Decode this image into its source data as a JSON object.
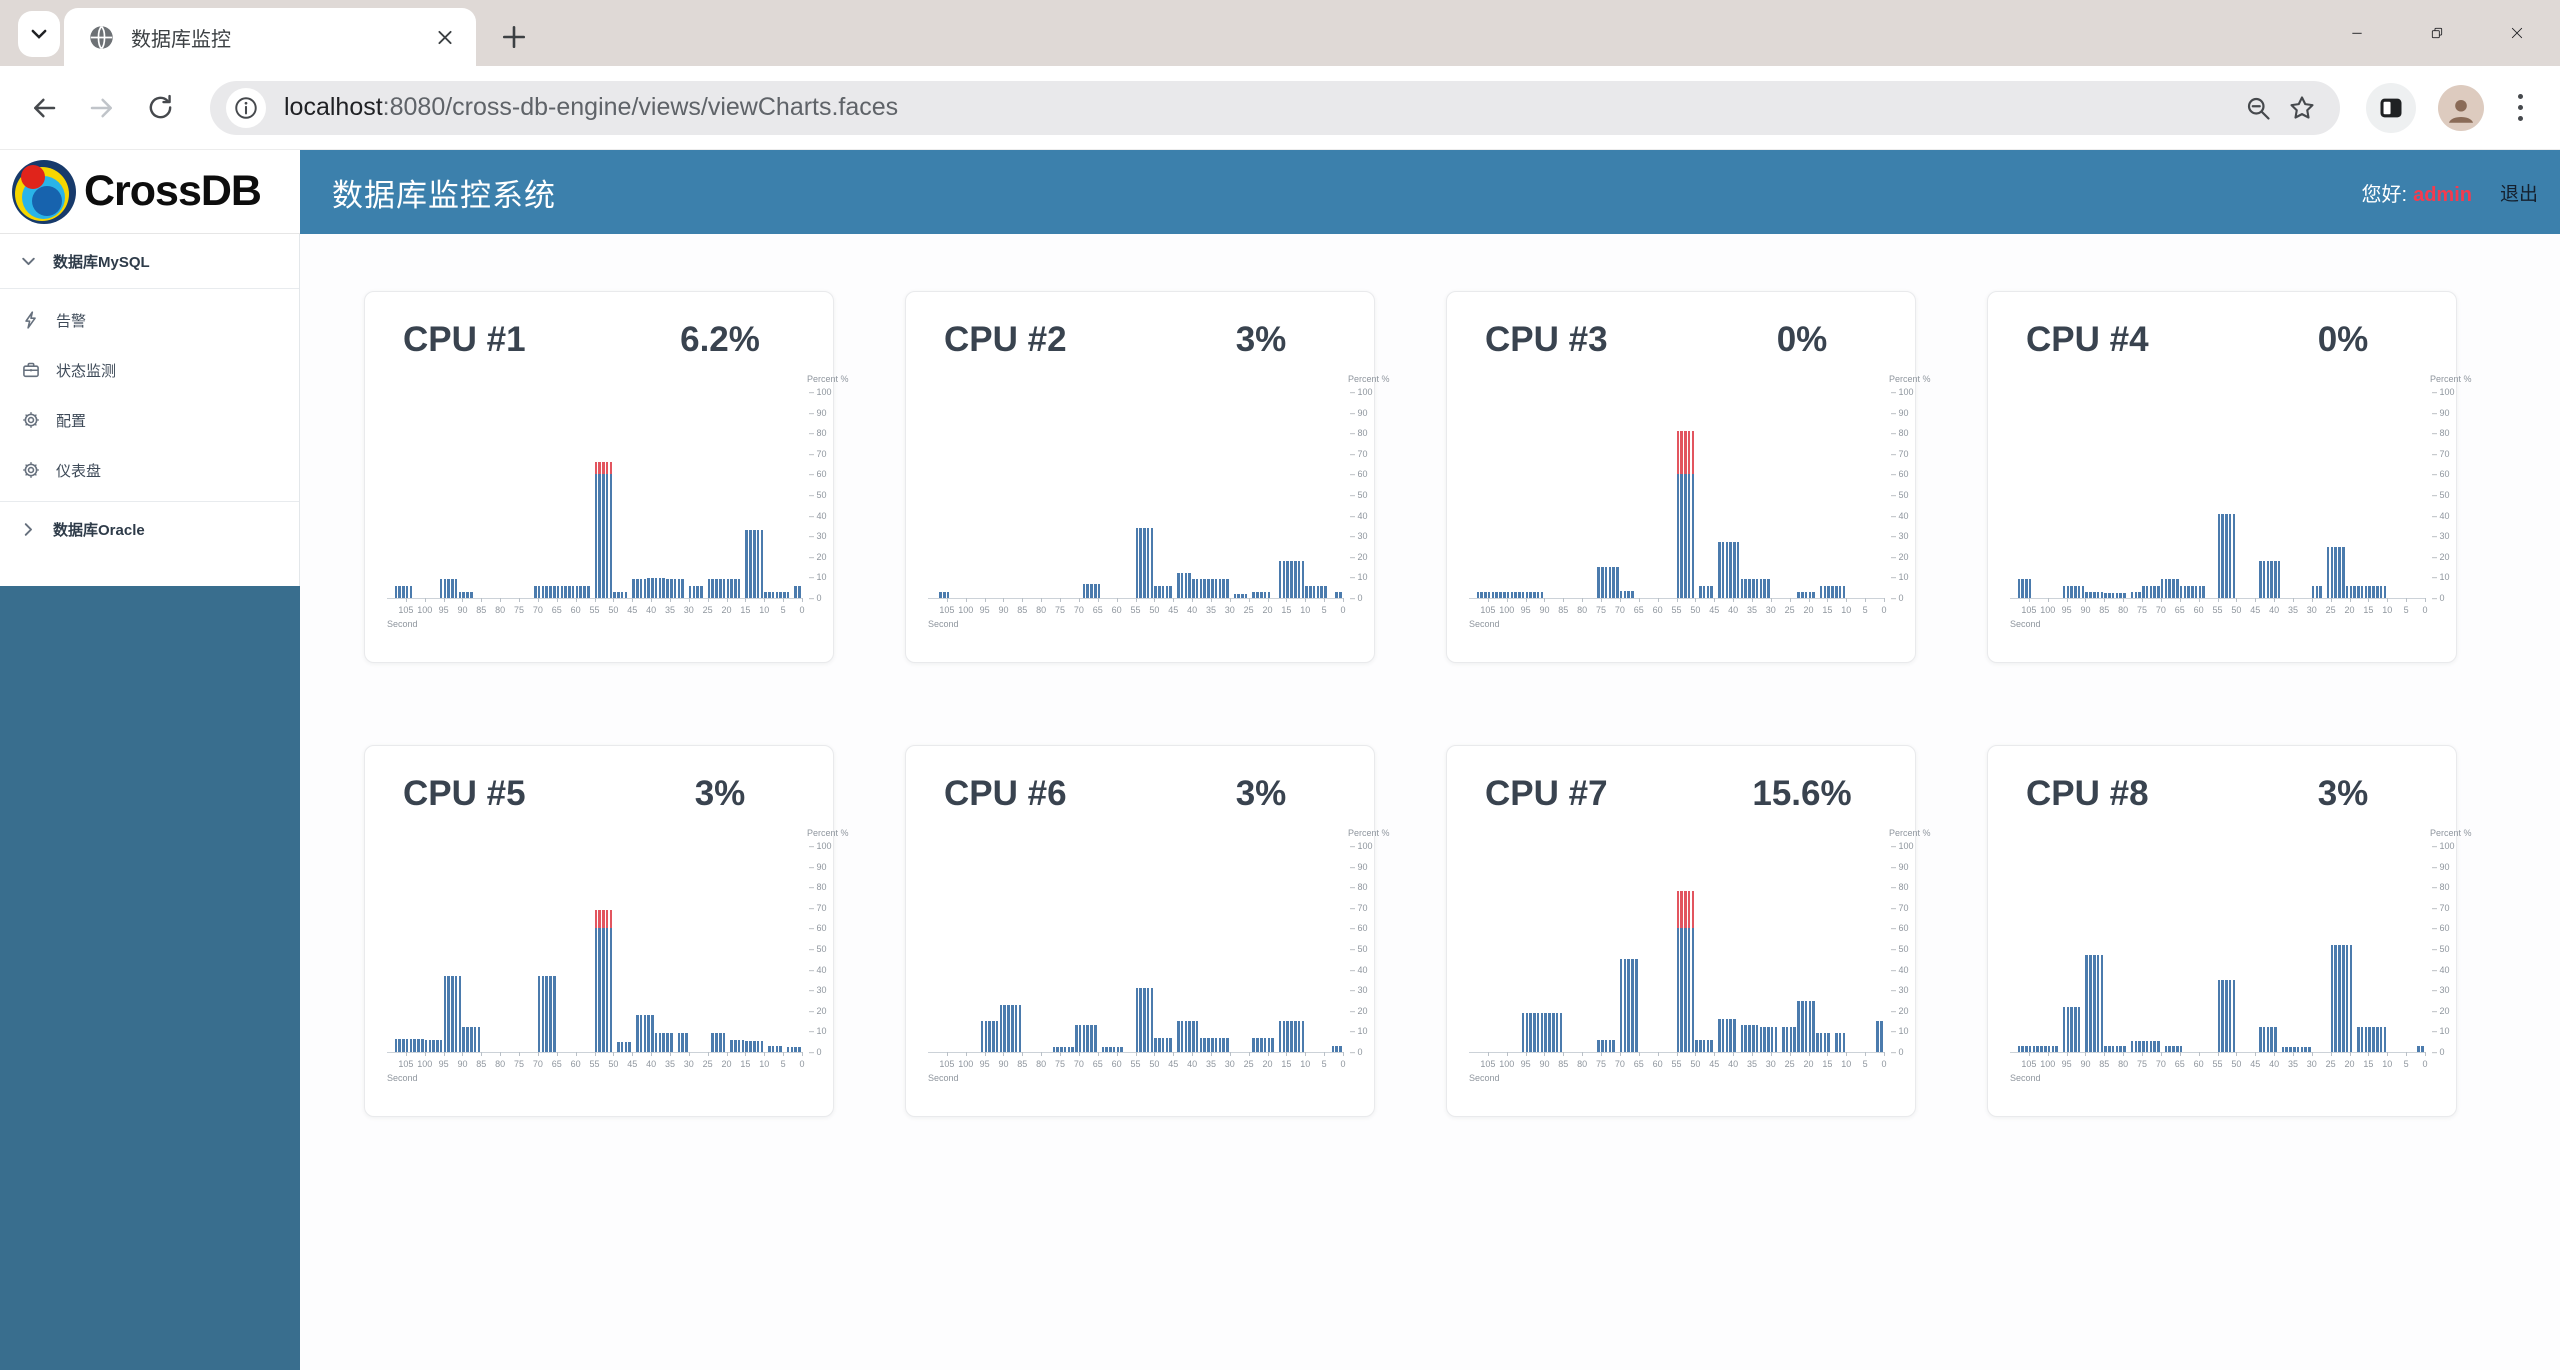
{
  "browser": {
    "tab_title": "数据库监控",
    "url_host": "localhost",
    "url_rest": ":8080/cross-db-engine/views/viewCharts.faces"
  },
  "app": {
    "brand": "CrossDB",
    "header_title": "数据库监控系统",
    "greeting_label": "您好:",
    "username": "admin",
    "logout_label": "退出"
  },
  "sidebar": {
    "groups": [
      {
        "label": "数据库MySQL",
        "expanded": true,
        "items": [
          {
            "label": "告警",
            "icon": "bolt-icon"
          },
          {
            "label": "状态监测",
            "icon": "briefcase-icon"
          },
          {
            "label": "配置",
            "icon": "gear-icon"
          },
          {
            "label": "仪表盘",
            "icon": "gear-icon"
          }
        ]
      },
      {
        "label": "数据库Oracle",
        "expanded": false,
        "items": []
      }
    ]
  },
  "chart_axes": {
    "x_ticks": [
      105,
      100,
      95,
      90,
      85,
      80,
      75,
      70,
      65,
      60,
      55,
      50,
      45,
      40,
      35,
      30,
      25,
      20,
      15,
      10,
      5,
      0
    ],
    "x_unit": "Second",
    "x_range_seconds": 110,
    "x_reversed": true,
    "y_ticks": [
      100,
      90,
      80,
      70,
      60,
      50,
      40,
      30,
      20,
      10,
      0
    ],
    "y_title": "Percent %",
    "ylim": [
      0,
      100
    ]
  },
  "chart_data": [
    {
      "type": "bar",
      "title": "CPU #1",
      "current_value": "6.2%",
      "xlabel": "Second",
      "ylabel": "Percent %",
      "bars": [
        [
          108,
          103,
          6
        ],
        [
          96,
          91,
          9
        ],
        [
          91,
          87,
          3
        ],
        [
          71,
          56,
          6
        ],
        [
          55,
          50,
          60,
          66
        ],
        [
          50,
          46,
          3
        ],
        [
          45,
          41,
          9
        ],
        [
          41,
          36,
          9.5
        ],
        [
          36,
          31,
          9
        ],
        [
          30,
          26,
          6
        ],
        [
          25,
          21,
          9
        ],
        [
          21,
          16,
          9
        ],
        [
          15,
          10,
          33
        ],
        [
          10,
          3,
          3
        ],
        [
          2,
          0,
          6
        ]
      ]
    },
    {
      "type": "bar",
      "title": "CPU #2",
      "current_value": "3%",
      "xlabel": "Second",
      "ylabel": "Percent %",
      "bars": [
        [
          107,
          104,
          3
        ],
        [
          69,
          64,
          7
        ],
        [
          55,
          50,
          34
        ],
        [
          50,
          45,
          6
        ],
        [
          44,
          40,
          12
        ],
        [
          40,
          35,
          9
        ],
        [
          35,
          30,
          9
        ],
        [
          29,
          25,
          2
        ],
        [
          24,
          19,
          3
        ],
        [
          17,
          10,
          18
        ],
        [
          10,
          4,
          6
        ],
        [
          2,
          0,
          3
        ]
      ]
    },
    {
      "type": "bar",
      "title": "CPU #3",
      "current_value": "0%",
      "xlabel": "Second",
      "ylabel": "Percent %",
      "bars": [
        [
          108,
          90,
          3
        ],
        [
          76,
          70,
          15
        ],
        [
          70,
          66,
          3.5
        ],
        [
          55,
          50,
          60,
          81
        ],
        [
          49,
          45,
          6
        ],
        [
          44,
          38,
          27
        ],
        [
          38,
          30,
          9
        ],
        [
          23,
          18,
          3
        ],
        [
          17,
          10,
          6
        ]
      ]
    },
    {
      "type": "bar",
      "title": "CPU #4",
      "current_value": "0%",
      "xlabel": "Second",
      "ylabel": "Percent %",
      "bars": [
        [
          108,
          104,
          9
        ],
        [
          96,
          90,
          6
        ],
        [
          90,
          85,
          3
        ],
        [
          85,
          79,
          2.5
        ],
        [
          78,
          75,
          3
        ],
        [
          75,
          70,
          6
        ],
        [
          70,
          65,
          9
        ],
        [
          65,
          58,
          6
        ],
        [
          55,
          50,
          41
        ],
        [
          44,
          38,
          18
        ],
        [
          30,
          27,
          6
        ],
        [
          26,
          21,
          25
        ],
        [
          21,
          15,
          6
        ],
        [
          15,
          10,
          6
        ]
      ]
    },
    {
      "type": "bar",
      "title": "CPU #5",
      "current_value": "3%",
      "xlabel": "Second",
      "ylabel": "Percent %",
      "bars": [
        [
          108,
          100,
          6.5
        ],
        [
          100,
          95,
          6
        ],
        [
          95,
          90,
          37
        ],
        [
          90,
          85,
          12
        ],
        [
          70,
          65,
          37
        ],
        [
          55,
          50,
          60,
          69
        ],
        [
          49,
          45,
          5
        ],
        [
          44,
          39,
          18
        ],
        [
          39,
          34,
          9
        ],
        [
          33,
          30,
          9
        ],
        [
          24,
          20,
          9
        ],
        [
          19,
          15,
          6
        ],
        [
          15,
          10,
          5.5
        ],
        [
          9,
          5,
          3
        ],
        [
          4,
          0,
          2.5
        ]
      ]
    },
    {
      "type": "bar",
      "title": "CPU #6",
      "current_value": "3%",
      "xlabel": "Second",
      "ylabel": "Percent %",
      "bars": [
        [
          96,
          91,
          15
        ],
        [
          91,
          85,
          23
        ],
        [
          77,
          71,
          2.5
        ],
        [
          71,
          65,
          13
        ],
        [
          64,
          58,
          2.5
        ],
        [
          55,
          50,
          31
        ],
        [
          50,
          45,
          7
        ],
        [
          44,
          38,
          15
        ],
        [
          38,
          30,
          7
        ],
        [
          24,
          18,
          7
        ],
        [
          17,
          10,
          15
        ],
        [
          3,
          0,
          3
        ]
      ]
    },
    {
      "type": "bar",
      "title": "CPU #7",
      "current_value": "15.6%",
      "xlabel": "Second",
      "ylabel": "Percent %",
      "bars": [
        [
          96,
          85,
          19
        ],
        [
          76,
          71,
          6
        ],
        [
          70,
          65,
          45
        ],
        [
          55,
          50,
          60,
          78
        ],
        [
          50,
          45,
          6
        ],
        [
          44,
          39,
          16
        ],
        [
          38,
          33,
          13
        ],
        [
          33,
          28,
          12
        ],
        [
          27,
          23,
          12
        ],
        [
          23,
          18,
          25
        ],
        [
          18,
          14,
          9
        ],
        [
          13,
          10,
          9
        ],
        [
          2,
          0,
          15
        ]
      ]
    },
    {
      "type": "bar",
      "title": "CPU #8",
      "current_value": "3%",
      "xlabel": "Second",
      "ylabel": "Percent %",
      "bars": [
        [
          108,
          97,
          3
        ],
        [
          96,
          91,
          22
        ],
        [
          90,
          85,
          47
        ],
        [
          85,
          79,
          3
        ],
        [
          78,
          70,
          5.5
        ],
        [
          69,
          64,
          3
        ],
        [
          55,
          50,
          35
        ],
        [
          44,
          39,
          12
        ],
        [
          38,
          30,
          2.5
        ],
        [
          25,
          19,
          52
        ],
        [
          18,
          10,
          12
        ],
        [
          2,
          0,
          3
        ]
      ]
    }
  ],
  "colors": {
    "bar_blue": "#4b7bad",
    "bar_red": "#e2555f",
    "header_blue": "#3c80ac",
    "sidebar_teal": "#396e8e",
    "username_red": "#f43b4f",
    "tabstrip_taupe": "#dfd9d6"
  }
}
